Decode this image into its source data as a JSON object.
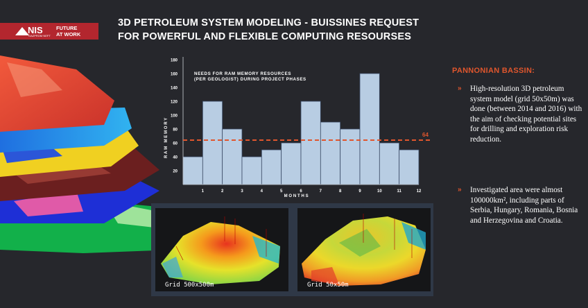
{
  "brand": {
    "logo_text": "NIS",
    "logo_subtext": "GAZPROM NEFT",
    "tagline_line1": "FUTURE",
    "tagline_line2": "AT WORK",
    "color": "#b3262e"
  },
  "title": {
    "line1": "3D PETROLEUM SYSTEM MODELING - BUISSINES REQUEST",
    "line2": "FOR POWERFUL AND FLEXIBLE COMPUTING RESOURSES"
  },
  "chart_data": {
    "type": "bar",
    "categories": [
      "1",
      "2",
      "3",
      "4",
      "5",
      "6",
      "7",
      "8",
      "9",
      "10",
      "11",
      "12"
    ],
    "values": [
      40,
      120,
      80,
      40,
      50,
      60,
      120,
      90,
      80,
      160,
      60,
      50
    ],
    "title_line1": "NEEDS FOR RAM MEMORY RESOURCES",
    "title_line2": "(PER GEOLOGIST) DURING PROJECT PHASES",
    "xlabel": "MONTHS",
    "ylabel": "RAM MEMORY",
    "ylim": [
      0,
      180
    ],
    "yticks": [
      20,
      40,
      60,
      80,
      100,
      120,
      140,
      160,
      180
    ],
    "reference_line": {
      "value": 64,
      "label": "64",
      "color": "#e0562d"
    },
    "bar_color": "#b8cde3",
    "grid": false
  },
  "panel": {
    "heading": "PANNONIAN BASSIN:",
    "bullet_mark": "»",
    "bullets": [
      "High-resolution 3D petroleum system model (grid 50x50m) was done (between 2014 and 2016) with the aim of checking potential sites for drilling and exploration risk reduction.",
      "Investigated area were almost 100000km², including parts of Serbia, Hungary, Romania, Bosnia and Herzegovina and Croatia."
    ],
    "accent": "#e0562d"
  },
  "maps": [
    {
      "caption": "Grid 500x500m"
    },
    {
      "caption": "Grid 50x50m"
    }
  ]
}
